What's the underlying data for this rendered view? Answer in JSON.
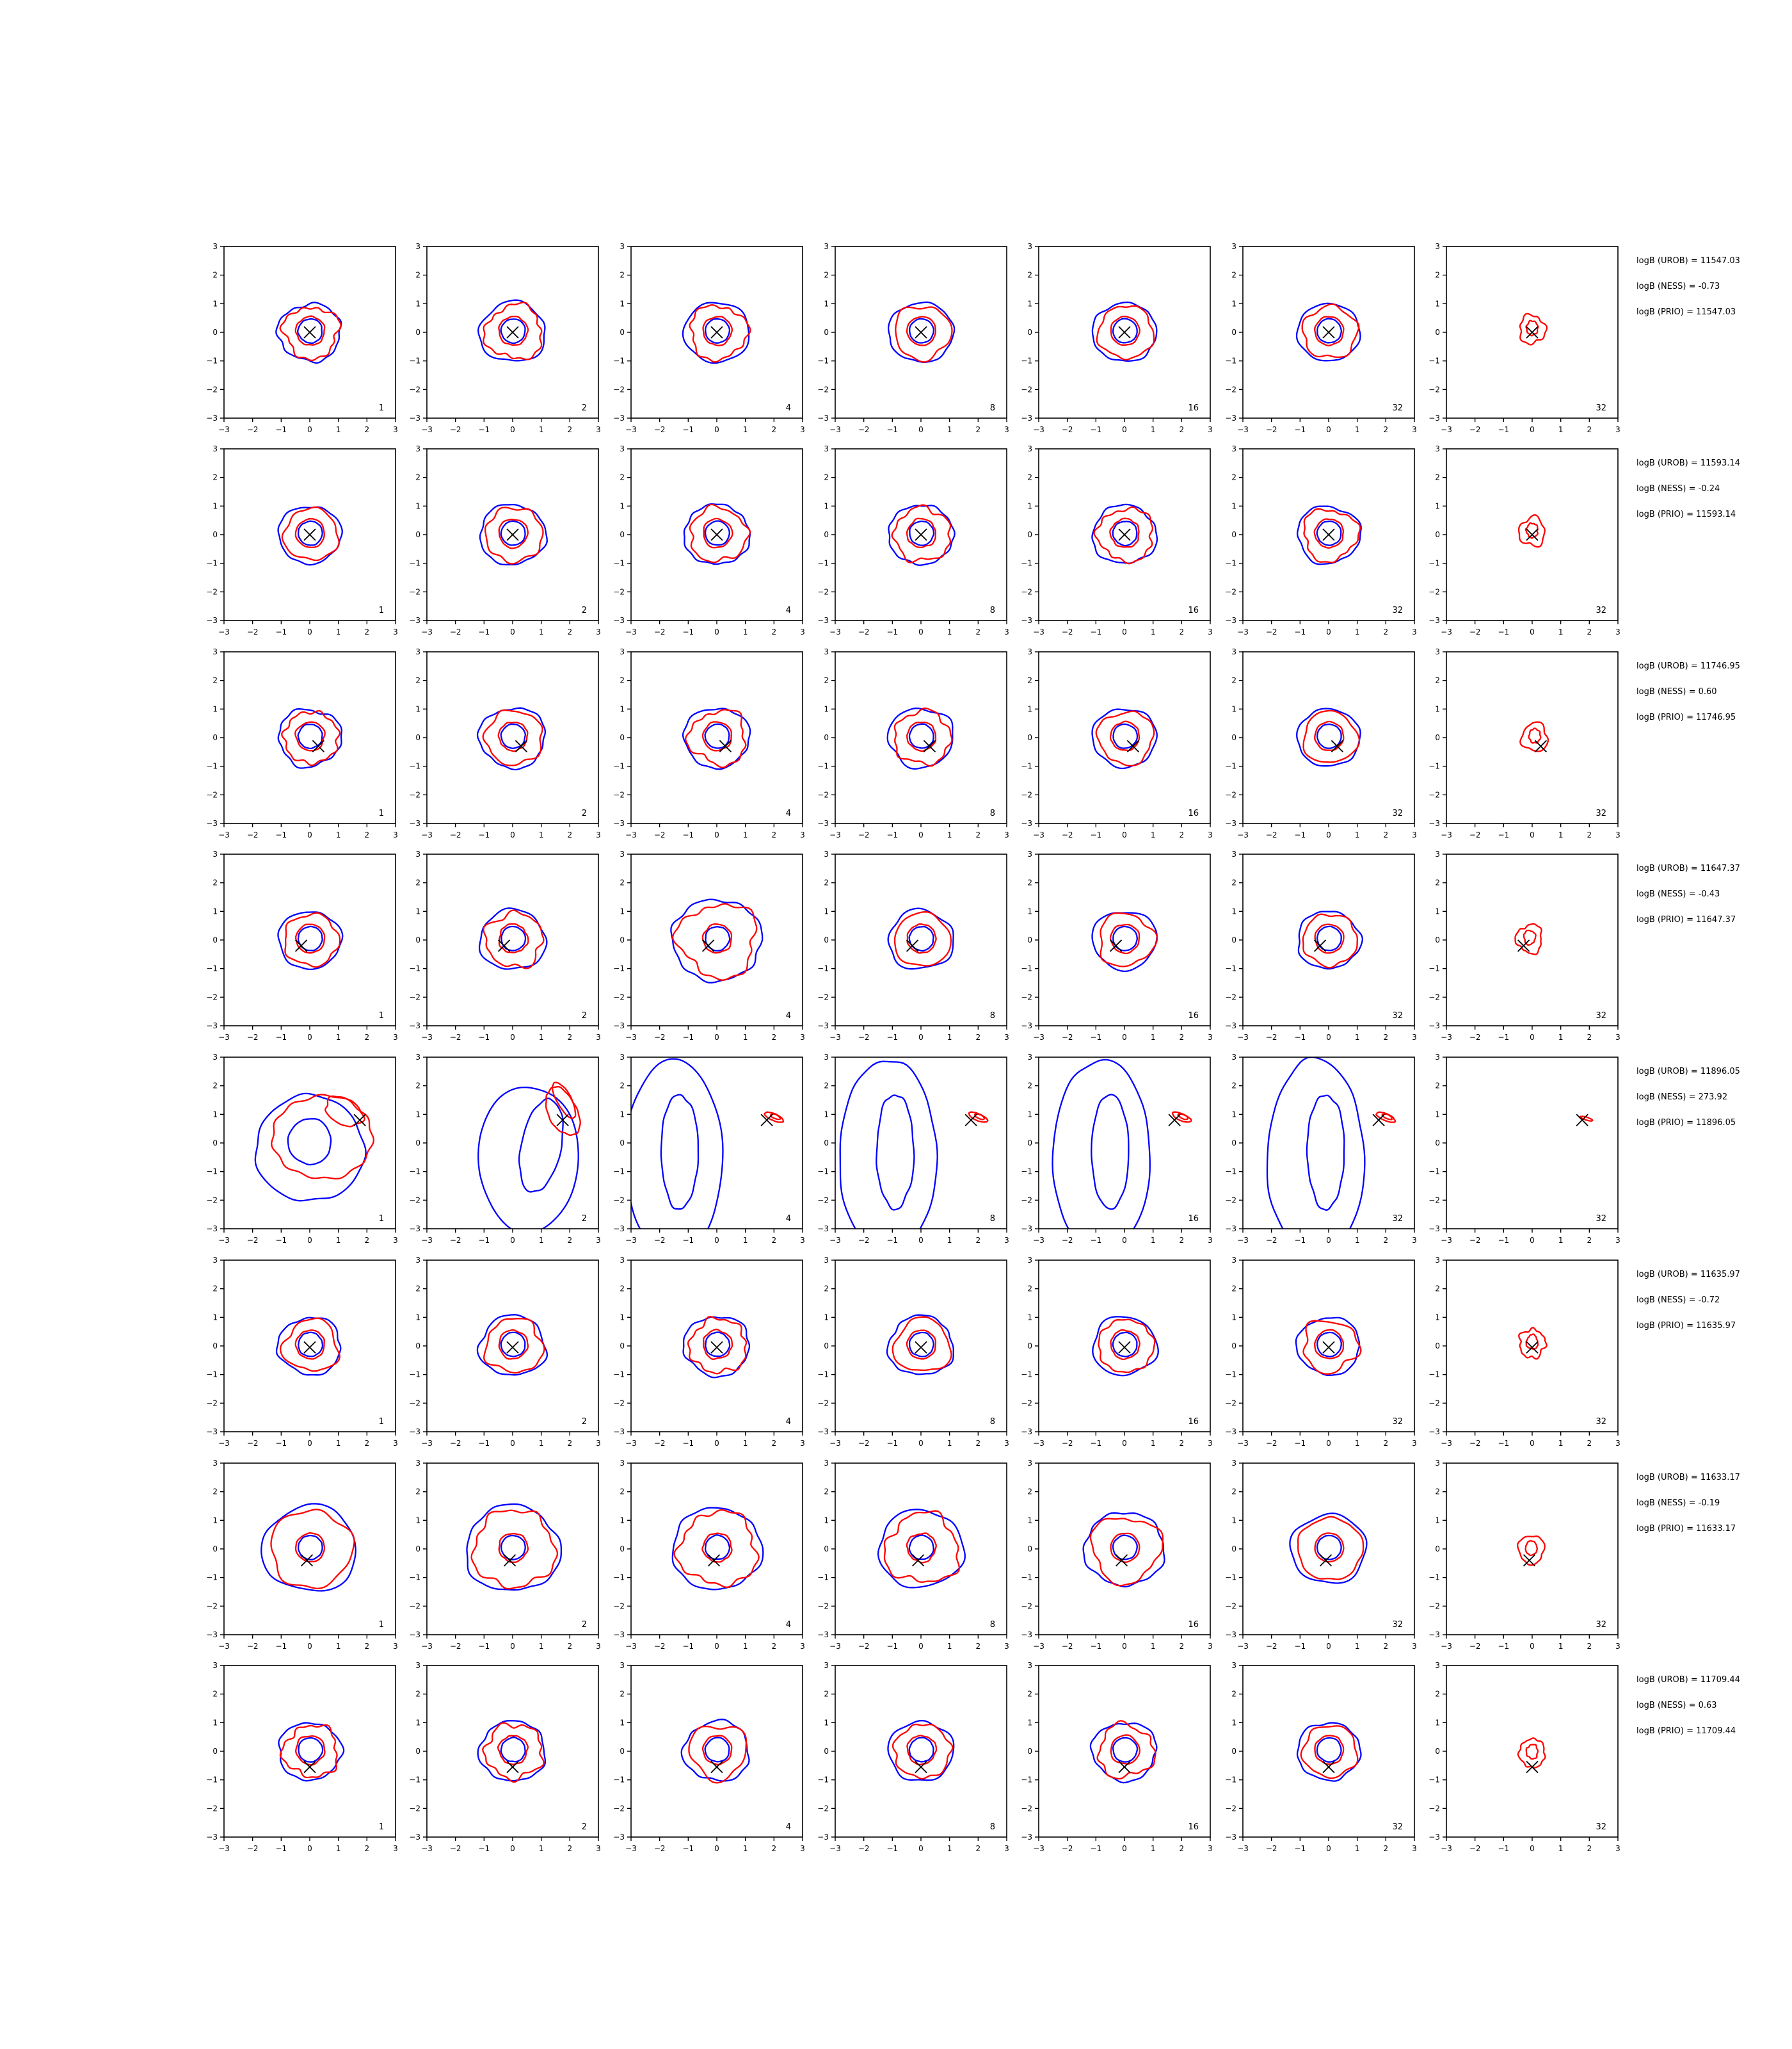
{
  "chart_data": {
    "type": "contour",
    "layout": {
      "rows": 8,
      "cols": 7
    },
    "xlim": [
      -3,
      3
    ],
    "ylim": [
      -3,
      3
    ],
    "ticks": [
      -3,
      -2,
      -1,
      0,
      1,
      2,
      3
    ],
    "tick_labels": [
      "−3",
      "−2",
      "−1",
      "0",
      "1",
      "2",
      "3"
    ],
    "panel_labels": [
      "1",
      "2",
      "4",
      "8",
      "16",
      "32",
      "32"
    ],
    "colors": {
      "contour_a": "#0000ff",
      "contour_b": "#ff0000",
      "marker": "#000000",
      "axes": "#000000"
    },
    "rows": [
      {
        "marker": [
          0.0,
          0.0
        ],
        "stats": [
          "logB (UROB) = 11547.03",
          "logB (NESS) = -0.73",
          "logB (PRIO) = 11547.03"
        ]
      },
      {
        "marker": [
          0.0,
          0.0
        ],
        "stats": [
          "logB (UROB) = 11593.14",
          "logB (NESS) = -0.24",
          "logB (PRIO) = 11593.14"
        ]
      },
      {
        "marker": [
          0.3,
          -0.3
        ],
        "stats": [
          "logB (UROB) = 11746.95",
          "logB (NESS) = 0.60",
          "logB (PRIO) = 11746.95"
        ]
      },
      {
        "marker": [
          -0.3,
          -0.2
        ],
        "stats": [
          "logB (UROB) = 11647.37",
          "logB (NESS) = -0.43",
          "logB (PRIO) = 11647.37"
        ]
      },
      {
        "marker": [
          1.75,
          0.8
        ],
        "stats": [
          "logB (UROB) = 11896.05",
          "logB (NESS) = 273.92",
          "logB (PRIO) = 11896.05"
        ]
      },
      {
        "marker": [
          0.0,
          -0.05
        ],
        "stats": [
          "logB (UROB) = 11635.97",
          "logB (NESS) = -0.72",
          "logB (PRIO) = 11635.97"
        ]
      },
      {
        "marker": [
          -0.1,
          -0.4
        ],
        "stats": [
          "logB (UROB) = 11633.17",
          "logB (NESS) = -0.19",
          "logB (PRIO) = 11633.17"
        ]
      },
      {
        "marker": [
          0.0,
          -0.55
        ],
        "stats": [
          "logB (UROB) = 11709.44",
          "logB (NESS) = 0.63",
          "logB (PRIO) = 11709.44"
        ]
      }
    ],
    "grid": false
  }
}
